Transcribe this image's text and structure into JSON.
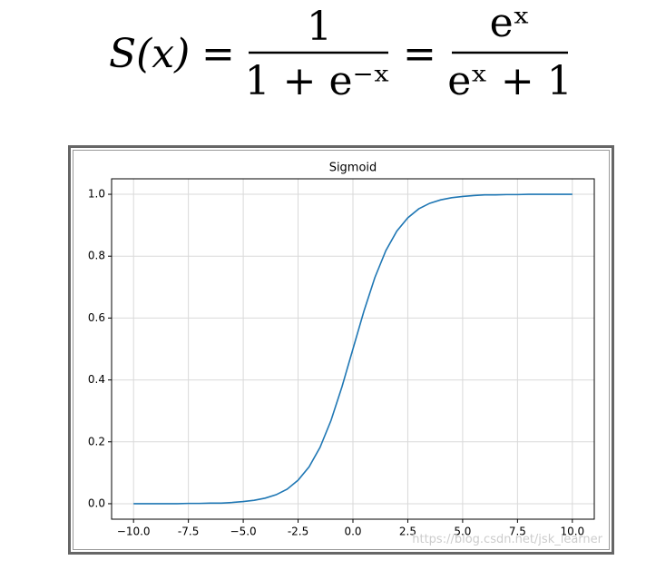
{
  "formula": {
    "lhs": "S(x)",
    "equals": "=",
    "numerator1": "1",
    "denominator1": "1 + e⁻ˣ",
    "numerator2": "eˣ",
    "denominator2": "eˣ + 1"
  },
  "watermark": "https://blog.csdn.net/jsk_learner",
  "chart_data": {
    "type": "line",
    "title": "Sigmoid",
    "x": [
      -10,
      -9.5,
      -9,
      -8.5,
      -8,
      -7.5,
      -7,
      -6.5,
      -6,
      -5.5,
      -5,
      -4.5,
      -4,
      -3.5,
      -3,
      -2.5,
      -2,
      -1.5,
      -1,
      -0.5,
      0,
      0.5,
      1,
      1.5,
      2,
      2.5,
      3,
      3.5,
      4,
      4.5,
      5,
      5.5,
      6,
      6.5,
      7,
      7.5,
      8,
      8.5,
      9,
      9.5,
      10
    ],
    "series": [
      {
        "name": "Sigmoid",
        "color": "#1f77b4",
        "values": [
          0.0,
          0.0,
          0.0,
          0.0,
          0.0,
          0.001,
          0.001,
          0.002,
          0.002,
          0.004,
          0.007,
          0.011,
          0.018,
          0.029,
          0.047,
          0.076,
          0.119,
          0.182,
          0.269,
          0.378,
          0.5,
          0.622,
          0.731,
          0.818,
          0.881,
          0.924,
          0.953,
          0.971,
          0.982,
          0.989,
          0.993,
          0.996,
          0.998,
          0.998,
          0.999,
          0.999,
          1.0,
          1.0,
          1.0,
          1.0,
          1.0
        ]
      }
    ],
    "xlim": [
      -11,
      11
    ],
    "ylim": [
      -0.05,
      1.05
    ],
    "xticks": [
      {
        "value": -10,
        "label": "−10.0"
      },
      -7.5,
      {
        "value": -5,
        "label": "−5.0"
      },
      -2.5,
      {
        "value": 0,
        "label": "0.0"
      },
      2.5,
      {
        "value": 5,
        "label": "5.0"
      },
      7.5,
      {
        "value": 10,
        "label": "10.0"
      }
    ],
    "yticks": [
      {
        "value": 0,
        "label": "0.0"
      },
      0.2,
      0.4,
      0.6,
      0.8,
      {
        "value": 1,
        "label": "1.0"
      }
    ],
    "grid": true
  }
}
